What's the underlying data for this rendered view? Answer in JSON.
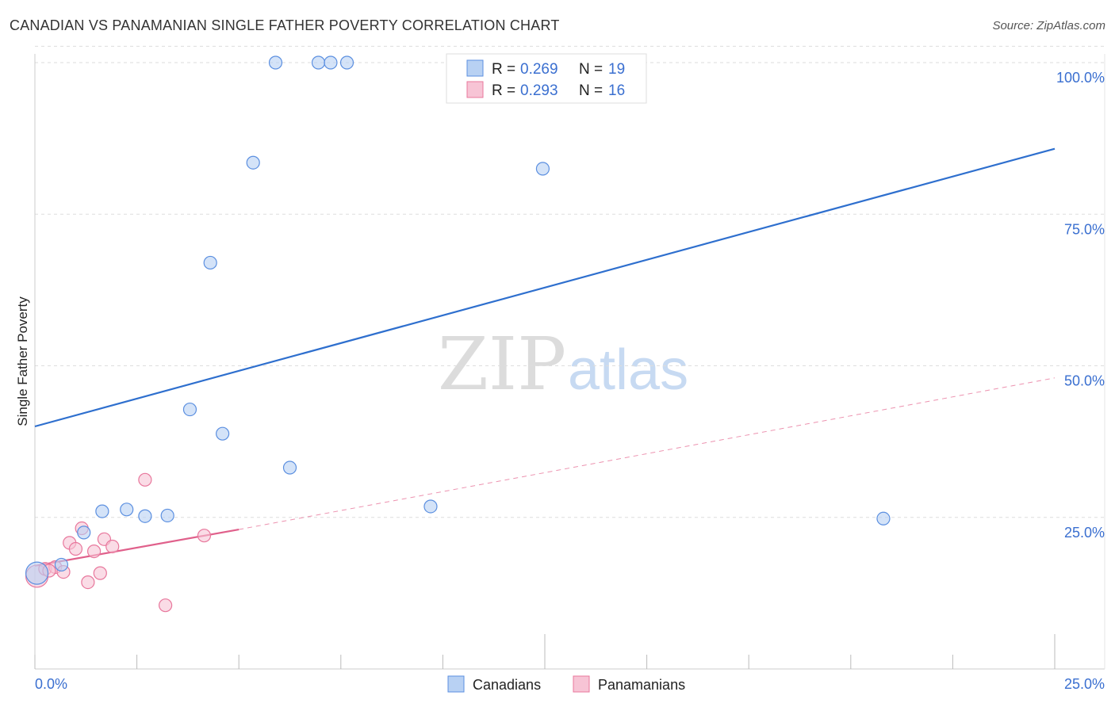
{
  "chart_data": {
    "type": "scatter",
    "title": "CANADIAN VS PANAMANIAN SINGLE FATHER POVERTY CORRELATION CHART",
    "source": "Source: ZipAtlas.com",
    "xlabel": "",
    "ylabel": "Single Father Poverty",
    "xlim": [
      0,
      25
    ],
    "ylim": [
      0,
      104
    ],
    "x_tick_labels": [
      "0.0%",
      "25.0%"
    ],
    "y_tick_labels": [
      "25.0%",
      "50.0%",
      "75.0%",
      "100.0%"
    ],
    "y_ticks": [
      25,
      50,
      75,
      100
    ],
    "watermark": [
      "ZIP",
      "atlas"
    ],
    "legend": {
      "canadians": {
        "r_label": "R = ",
        "r_value": "0.269",
        "n_label": "N = ",
        "n_value": "19"
      },
      "panamanians": {
        "r_label": "R = ",
        "r_value": "0.293",
        "n_label": "N = ",
        "n_value": "16"
      }
    },
    "series": [
      {
        "name": "Canadians",
        "color": "#5b8fe0",
        "fill": "#b8d1f3",
        "points": [
          [
            0.05,
            15.8
          ],
          [
            0.65,
            17.2
          ],
          [
            1.2,
            22.5
          ],
          [
            1.65,
            26.0
          ],
          [
            2.25,
            26.3
          ],
          [
            2.7,
            25.2
          ],
          [
            3.25,
            25.3
          ],
          [
            3.8,
            42.8
          ],
          [
            4.3,
            67.0
          ],
          [
            4.6,
            38.8
          ],
          [
            5.35,
            83.5
          ],
          [
            5.9,
            100.0
          ],
          [
            6.95,
            100.0
          ],
          [
            7.25,
            100.0
          ],
          [
            7.65,
            100.0
          ],
          [
            6.25,
            33.2
          ],
          [
            9.7,
            26.8
          ],
          [
            12.45,
            82.5
          ],
          [
            20.8,
            24.8
          ]
        ],
        "trend": {
          "x0": 0,
          "y0": 40.0,
          "x1": 25,
          "y1": 85.8
        }
      },
      {
        "name": "Panamanians",
        "color": "#e8779c",
        "fill": "#f7c4d5",
        "points": [
          [
            0.05,
            15.3
          ],
          [
            0.25,
            16.5
          ],
          [
            0.5,
            16.8
          ],
          [
            0.7,
            16.0
          ],
          [
            0.85,
            20.8
          ],
          [
            1.0,
            19.8
          ],
          [
            1.15,
            23.2
          ],
          [
            1.3,
            14.3
          ],
          [
            1.45,
            19.4
          ],
          [
            1.6,
            15.8
          ],
          [
            1.7,
            21.4
          ],
          [
            1.9,
            20.2
          ],
          [
            2.7,
            31.2
          ],
          [
            3.2,
            10.5
          ],
          [
            4.15,
            22.0
          ],
          [
            0.35,
            16.2
          ]
        ],
        "trend": {
          "x0": 0,
          "y0": 17.0,
          "x1": 5,
          "y1": 23.0
        },
        "trend_ext": {
          "x0": 5,
          "y0": 23.0,
          "x1": 25,
          "y1": 48.0
        }
      }
    ],
    "bottom_legend": [
      "Canadians",
      "Panamanians"
    ]
  }
}
